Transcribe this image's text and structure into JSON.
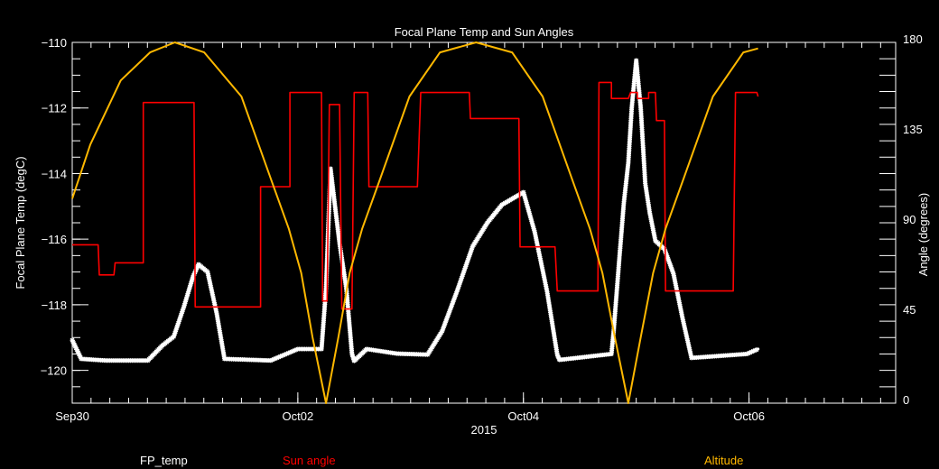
{
  "chart_data": {
    "type": "line",
    "title": "Focal Plane Temp and Sun Angles",
    "xlabel": "2015",
    "ylabel": "Focal Plane Temp (degC)",
    "ylabel_right": "Angle (degrees)",
    "x_units": "days since Sep30 00:00",
    "xlim": [
      0,
      7.3
    ],
    "ylim": [
      -121,
      -110
    ],
    "ylim_right": [
      0,
      180
    ],
    "x_ticks": [
      {
        "value": 0,
        "label": "Sep30"
      },
      {
        "value": 2,
        "label": "Oct02"
      },
      {
        "value": 4,
        "label": "Oct04"
      },
      {
        "value": 6,
        "label": "Oct06"
      }
    ],
    "y_ticks": [
      {
        "value": -110,
        "label": "−110"
      },
      {
        "value": -112,
        "label": "−112"
      },
      {
        "value": -114,
        "label": "−114"
      },
      {
        "value": -116,
        "label": "−116"
      },
      {
        "value": -118,
        "label": "−118"
      },
      {
        "value": -120,
        "label": "−120"
      }
    ],
    "y_ticks_right": [
      {
        "value": 0,
        "label": "0"
      },
      {
        "value": 45,
        "label": "45"
      },
      {
        "value": 90,
        "label": "90"
      },
      {
        "value": 135,
        "label": "135"
      },
      {
        "value": 180,
        "label": "180"
      }
    ],
    "grid": false,
    "legend_placement": "bottom",
    "series": [
      {
        "name": "FP_temp",
        "axis": "left",
        "color": "#ffffff",
        "marker": "star",
        "points": [
          [
            0,
            -119.08
          ],
          [
            0.08,
            -119.65
          ],
          [
            0.3,
            -119.7
          ],
          [
            0.67,
            -119.7
          ],
          [
            0.8,
            -119.24
          ],
          [
            0.9,
            -118.97
          ],
          [
            0.99,
            -118.06
          ],
          [
            1.07,
            -117.15
          ],
          [
            1.12,
            -116.77
          ],
          [
            1.2,
            -117.0
          ],
          [
            1.28,
            -118.25
          ],
          [
            1.35,
            -119.65
          ],
          [
            1.76,
            -119.7
          ],
          [
            2.0,
            -119.35
          ],
          [
            2.21,
            -119.35
          ],
          [
            2.25,
            -117.5
          ],
          [
            2.29,
            -113.85
          ],
          [
            2.33,
            -115.0
          ],
          [
            2.37,
            -116.13
          ],
          [
            2.43,
            -117.5
          ],
          [
            2.48,
            -119.5
          ],
          [
            2.5,
            -119.71
          ],
          [
            2.61,
            -119.35
          ],
          [
            2.88,
            -119.49
          ],
          [
            3.15,
            -119.52
          ],
          [
            3.28,
            -118.8
          ],
          [
            3.41,
            -117.6
          ],
          [
            3.55,
            -116.22
          ],
          [
            3.68,
            -115.5
          ],
          [
            3.81,
            -114.95
          ],
          [
            4.0,
            -114.57
          ],
          [
            4.1,
            -115.78
          ],
          [
            4.21,
            -117.6
          ],
          [
            4.3,
            -119.52
          ],
          [
            4.32,
            -119.68
          ],
          [
            4.78,
            -119.5
          ],
          [
            4.8,
            -118.8
          ],
          [
            4.85,
            -116.6
          ],
          [
            4.89,
            -114.9
          ],
          [
            4.93,
            -113.66
          ],
          [
            4.96,
            -112.0
          ],
          [
            5.0,
            -110.55
          ],
          [
            5.04,
            -112.0
          ],
          [
            5.08,
            -114.3
          ],
          [
            5.12,
            -115.2
          ],
          [
            5.17,
            -116.05
          ],
          [
            5.25,
            -116.3
          ],
          [
            5.33,
            -117.05
          ],
          [
            5.41,
            -118.4
          ],
          [
            5.49,
            -119.62
          ],
          [
            5.98,
            -119.5
          ],
          [
            6.08,
            -119.35
          ]
        ]
      },
      {
        "name": "Sun angle",
        "axis": "right",
        "color": "#ff0000",
        "marker": "step",
        "points": [
          [
            0,
            79
          ],
          [
            0.23,
            79
          ],
          [
            0.24,
            64
          ],
          [
            0.37,
            64
          ],
          [
            0.38,
            70
          ],
          [
            0.63,
            70
          ],
          [
            0.63,
            150
          ],
          [
            1.08,
            150
          ],
          [
            1.09,
            48
          ],
          [
            1.67,
            48
          ],
          [
            1.67,
            108
          ],
          [
            1.93,
            108
          ],
          [
            1.93,
            155
          ],
          [
            2.21,
            155
          ],
          [
            2.22,
            51
          ],
          [
            2.26,
            51
          ],
          [
            2.28,
            149
          ],
          [
            2.37,
            149
          ],
          [
            2.39,
            47
          ],
          [
            2.48,
            47
          ],
          [
            2.5,
            155
          ],
          [
            2.62,
            155
          ],
          [
            2.63,
            108
          ],
          [
            3.06,
            108
          ],
          [
            3.09,
            155
          ],
          [
            3.52,
            155
          ],
          [
            3.53,
            142
          ],
          [
            3.96,
            142
          ],
          [
            3.97,
            78
          ],
          [
            4.28,
            78
          ],
          [
            4.3,
            56
          ],
          [
            4.66,
            56
          ],
          [
            4.67,
            160
          ],
          [
            4.78,
            160
          ],
          [
            4.78,
            152
          ],
          [
            4.93,
            152
          ],
          [
            4.95,
            155
          ],
          [
            5.01,
            155
          ],
          [
            5.01,
            152
          ],
          [
            5.11,
            152
          ],
          [
            5.11,
            155
          ],
          [
            5.17,
            155
          ],
          [
            5.18,
            141
          ],
          [
            5.25,
            141
          ],
          [
            5.26,
            56
          ],
          [
            5.86,
            56
          ],
          [
            5.88,
            155
          ],
          [
            6.07,
            155
          ],
          [
            6.08,
            153
          ]
        ]
      },
      {
        "name": "Altitude",
        "axis": "right",
        "color": "#ffb800",
        "marker": "line",
        "points": [
          [
            0,
            102
          ],
          [
            0.16,
            129
          ],
          [
            0.43,
            161
          ],
          [
            0.69,
            175
          ],
          [
            0.91,
            180
          ],
          [
            1.17,
            175
          ],
          [
            1.5,
            153
          ],
          [
            1.76,
            112
          ],
          [
            1.92,
            87
          ],
          [
            2.03,
            65
          ],
          [
            2.13,
            33
          ],
          [
            2.25,
            0
          ],
          [
            2.36,
            33
          ],
          [
            2.46,
            65
          ],
          [
            2.57,
            87
          ],
          [
            2.73,
            112
          ],
          [
            2.99,
            153
          ],
          [
            3.26,
            175
          ],
          [
            3.58,
            180
          ],
          [
            3.9,
            175
          ],
          [
            4.17,
            153
          ],
          [
            4.43,
            112
          ],
          [
            4.59,
            87
          ],
          [
            4.7,
            65
          ],
          [
            4.81,
            33
          ],
          [
            4.93,
            0
          ],
          [
            5.04,
            33
          ],
          [
            5.15,
            65
          ],
          [
            5.26,
            87
          ],
          [
            5.42,
            112
          ],
          [
            5.68,
            153
          ],
          [
            5.95,
            175
          ],
          [
            6.08,
            177
          ]
        ]
      }
    ]
  }
}
